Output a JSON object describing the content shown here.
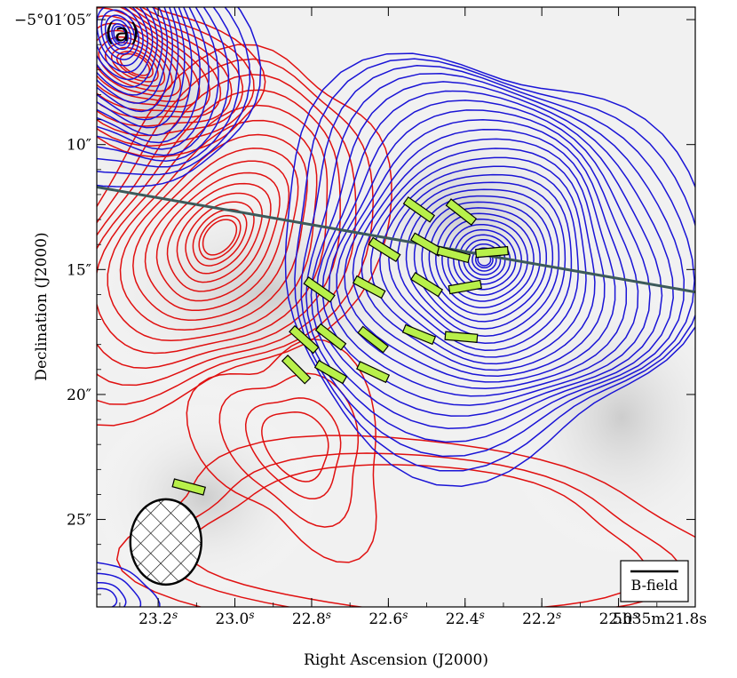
{
  "chart_data": {
    "type": "contour",
    "panel_label": "(a)",
    "xlabel": "Right Ascension (J2000)",
    "ylabel": "Declination (J2000)",
    "x_axis": {
      "unit": "seconds of RA (5h35m)",
      "range": [
        23.36,
        21.8
      ],
      "inverted": true,
      "ticks": [
        {
          "value": 23.2,
          "main": "23.2",
          "sup": "s"
        },
        {
          "value": 23.0,
          "main": "23.0",
          "sup": "s"
        },
        {
          "value": 22.8,
          "main": "22.8",
          "sup": "s"
        },
        {
          "value": 22.6,
          "main": "22.6",
          "sup": "s"
        },
        {
          "value": 22.4,
          "main": "22.4",
          "sup": "s"
        },
        {
          "value": 22.2,
          "main": "22.2",
          "sup": "s"
        },
        {
          "value": 22.0,
          "main": "22.0",
          "sup": "s"
        },
        {
          "value": 21.8,
          "main": "5h35m21.8s",
          "sup": ""
        }
      ]
    },
    "y_axis": {
      "unit": "arcsec offset below -5°01′",
      "range": [
        4.5,
        28.5
      ],
      "inverted": true,
      "ticks": [
        {
          "value": 5,
          "label": "−5°01′05″"
        },
        {
          "value": 10,
          "label": "10″"
        },
        {
          "value": 15,
          "label": "15″"
        },
        {
          "value": 20,
          "label": "20″"
        },
        {
          "value": 25,
          "label": "25″"
        }
      ]
    },
    "series": [
      {
        "kind": "contour",
        "color": "#e01010",
        "peaks": [
          {
            "ra": 23.04,
            "dec": 13.7
          },
          {
            "ra": 23.26,
            "dec": 6.8
          },
          {
            "ra": 22.84,
            "dec": 22.0
          }
        ]
      },
      {
        "kind": "contour",
        "color": "#1a14d6",
        "peaks": [
          {
            "ra": 22.35,
            "dec": 14.6
          },
          {
            "ra": 23.3,
            "dec": 5.6
          },
          {
            "ra": 23.35,
            "dec": 28.2
          }
        ]
      }
    ],
    "axis_line": {
      "color": "#3c5a5a",
      "from": {
        "ra": 23.36,
        "dec": 11.7
      },
      "to": {
        "ra": 21.8,
        "dec": 15.9
      }
    },
    "vectors": [
      {
        "ra": 22.52,
        "dec": 12.6,
        "angle": 35
      },
      {
        "ra": 22.41,
        "dec": 12.7,
        "angle": 38
      },
      {
        "ra": 22.61,
        "dec": 14.2,
        "angle": 32
      },
      {
        "ra": 22.5,
        "dec": 14.0,
        "angle": 30
      },
      {
        "ra": 22.43,
        "dec": 14.4,
        "angle": 15
      },
      {
        "ra": 22.33,
        "dec": 14.3,
        "angle": -5
      },
      {
        "ra": 22.78,
        "dec": 15.8,
        "angle": 35
      },
      {
        "ra": 22.65,
        "dec": 15.7,
        "angle": 28
      },
      {
        "ra": 22.5,
        "dec": 15.6,
        "angle": 32
      },
      {
        "ra": 22.4,
        "dec": 15.7,
        "angle": -10
      },
      {
        "ra": 22.82,
        "dec": 17.8,
        "angle": 42
      },
      {
        "ra": 22.75,
        "dec": 17.7,
        "angle": 38
      },
      {
        "ra": 22.64,
        "dec": 17.8,
        "angle": 38
      },
      {
        "ra": 22.52,
        "dec": 17.6,
        "angle": 22
      },
      {
        "ra": 22.41,
        "dec": 17.7,
        "angle": 5
      },
      {
        "ra": 22.84,
        "dec": 19.0,
        "angle": 45
      },
      {
        "ra": 22.75,
        "dec": 19.1,
        "angle": 30
      },
      {
        "ra": 22.64,
        "dec": 19.1,
        "angle": 25
      },
      {
        "ra": 23.12,
        "dec": 23.7,
        "angle": 15
      }
    ],
    "beam": {
      "ra": 23.18,
      "dec": 25.9
    },
    "legend": {
      "label": "B-field",
      "placement": "bottom-right"
    }
  }
}
